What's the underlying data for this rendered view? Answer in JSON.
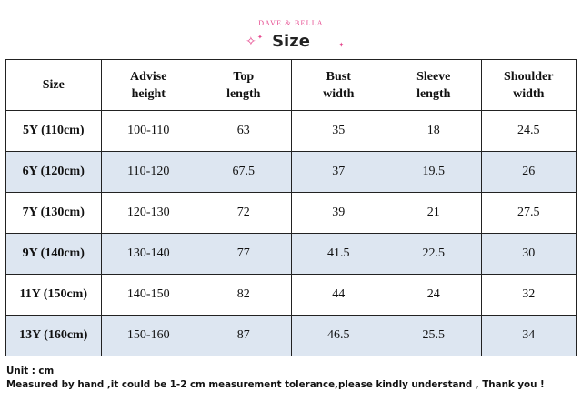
{
  "header": {
    "brand": "DAVE & BELLA",
    "title": "Size"
  },
  "table": {
    "columns": [
      [
        "Size"
      ],
      [
        "Advise",
        "height"
      ],
      [
        "Top",
        "length"
      ],
      [
        "Bust",
        "width"
      ],
      [
        "Sleeve",
        "length"
      ],
      [
        "Shoulder",
        "width"
      ]
    ],
    "rows": [
      [
        "5Y (110cm)",
        "100-110",
        "63",
        "35",
        "18",
        "24.5"
      ],
      [
        "6Y (120cm)",
        "110-120",
        "67.5",
        "37",
        "19.5",
        "26"
      ],
      [
        "7Y (130cm)",
        "120-130",
        "72",
        "39",
        "21",
        "27.5"
      ],
      [
        "9Y (140cm)",
        "130-140",
        "77",
        "41.5",
        "22.5",
        "30"
      ],
      [
        "11Y (150cm)",
        "140-150",
        "82",
        "44",
        "24",
        "32"
      ],
      [
        "13Y (160cm)",
        "150-160",
        "87",
        "46.5",
        "25.5",
        "34"
      ]
    ]
  },
  "footer": {
    "unit": "Unit : cm",
    "note": "Measured by hand ,it could be 1-2 cm measurement tolerance,please kindly understand , Thank you !"
  },
  "colors": {
    "accent": "#e64a8f",
    "row_shade": "#dde6f1"
  }
}
